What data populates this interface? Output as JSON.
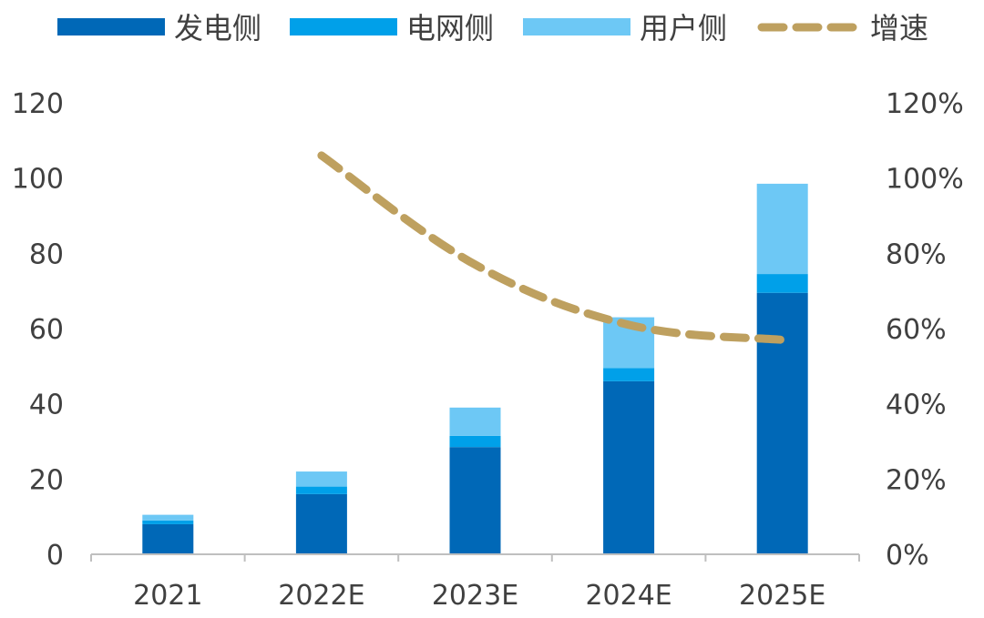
{
  "chart_data": {
    "type": "bar",
    "stacked": true,
    "categories": [
      "2021",
      "2022E",
      "2023E",
      "2024E",
      "2025E"
    ],
    "series": [
      {
        "name": "发电侧",
        "kind": "bar",
        "axis": "left",
        "color": "#0068B7",
        "values": [
          8,
          16,
          28.5,
          46,
          69.5
        ]
      },
      {
        "name": "电网侧",
        "kind": "bar",
        "axis": "left",
        "color": "#00A0E9",
        "values": [
          1,
          2,
          3,
          3.5,
          5
        ]
      },
      {
        "name": "用户侧",
        "kind": "bar",
        "axis": "left",
        "color": "#6DC8F5",
        "values": [
          1.5,
          4,
          7.5,
          13.5,
          24
        ]
      },
      {
        "name": "增速",
        "kind": "line",
        "axis": "right",
        "color": "#BEA05F",
        "dashed": true,
        "values": [
          null,
          1.06,
          0.77,
          0.61,
          0.57
        ]
      }
    ],
    "y_left": {
      "min": 0,
      "max": 120,
      "ticks": [
        "0",
        "20",
        "40",
        "60",
        "80",
        "100",
        "120"
      ]
    },
    "y_right": {
      "min": 0,
      "max": 1.2,
      "ticks": [
        "0%",
        "20%",
        "40%",
        "60%",
        "80%",
        "100%",
        "120%"
      ]
    },
    "grid": false,
    "legend_position": "top"
  }
}
